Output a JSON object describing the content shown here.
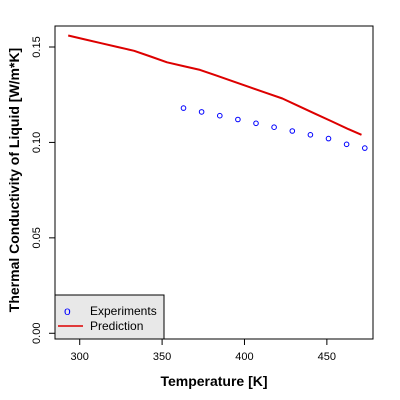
{
  "chart_data": {
    "type": "scatter",
    "title": "",
    "xlabel": "Temperature [K]",
    "ylabel": "Thermal Conductivity of Liquid [W/m*K]",
    "xlim": [
      285,
      478
    ],
    "ylim": [
      -0.003,
      0.161
    ],
    "x_ticks": [
      300,
      350,
      400,
      450
    ],
    "y_ticks": [
      0.0,
      0.05,
      0.1,
      0.15
    ],
    "y_tick_labels": [
      "0.00",
      "0.05",
      "0.10",
      "0.15"
    ],
    "grid": false,
    "legend_position": "bottom-left",
    "series": [
      {
        "name": "Experiments",
        "kind": "points",
        "marker": "open-circle",
        "color": "#0000ff",
        "x": [
          363,
          374,
          385,
          396,
          407,
          418,
          429,
          440,
          451,
          462,
          473
        ],
        "y": [
          0.118,
          0.116,
          0.114,
          0.112,
          0.11,
          0.108,
          0.106,
          0.104,
          0.102,
          0.099,
          0.097
        ]
      },
      {
        "name": "Prediction",
        "kind": "line",
        "color": "#dd0000",
        "x": [
          293,
          303,
          313,
          323,
          333,
          343,
          353,
          363,
          373,
          383,
          393,
          403,
          413,
          423,
          433,
          443,
          453,
          463,
          471
        ],
        "y": [
          0.156,
          0.154,
          0.152,
          0.15,
          0.148,
          0.145,
          0.142,
          0.14,
          0.138,
          0.135,
          0.132,
          0.129,
          0.126,
          0.123,
          0.119,
          0.115,
          0.111,
          0.107,
          0.104
        ]
      }
    ]
  },
  "legend": {
    "symbol": "o",
    "experiments_label": "Experiments",
    "prediction_label": "Prediction"
  }
}
